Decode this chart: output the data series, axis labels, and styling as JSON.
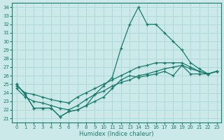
{
  "xlabel": "Humidex (Indice chaleur)",
  "xlim": [
    -0.5,
    23.5
  ],
  "ylim": [
    20.5,
    34.5
  ],
  "yticks": [
    21,
    22,
    23,
    24,
    25,
    26,
    27,
    28,
    29,
    30,
    31,
    32,
    33,
    34
  ],
  "xticks": [
    0,
    1,
    2,
    3,
    4,
    5,
    6,
    7,
    8,
    9,
    10,
    11,
    12,
    13,
    14,
    15,
    16,
    17,
    18,
    19,
    20,
    21,
    22,
    23
  ],
  "bg_color": "#cce9e9",
  "grid_color": "#b0d8d8",
  "line_color": "#1a7a6e",
  "series_main": [
    25.0,
    23.8,
    22.2,
    22.2,
    22.2,
    21.2,
    21.8,
    22.0,
    22.5,
    23.8,
    24.8,
    25.8,
    29.2,
    32.0,
    34.0,
    32.0,
    32.0,
    31.0,
    30.0,
    29.0,
    27.5,
    26.8,
    26.2,
    26.5
  ],
  "series_low": [
    25.0,
    23.8,
    22.2,
    22.2,
    22.2,
    21.2,
    21.8,
    22.0,
    22.5,
    23.0,
    23.5,
    24.5,
    25.5,
    26.0,
    25.8,
    26.0,
    26.2,
    26.5,
    26.0,
    27.2,
    26.2,
    26.2,
    26.2,
    26.5
  ],
  "series_trend1": [
    24.8,
    24.0,
    23.8,
    23.5,
    23.2,
    23.0,
    22.8,
    23.5,
    24.0,
    24.5,
    25.0,
    25.5,
    26.0,
    26.5,
    27.0,
    27.2,
    27.5,
    27.5,
    27.5,
    27.5,
    27.0,
    26.5,
    26.2,
    26.5
  ],
  "series_trend2": [
    24.5,
    23.5,
    23.0,
    22.8,
    22.5,
    22.2,
    22.0,
    22.5,
    23.2,
    23.8,
    24.2,
    24.8,
    25.2,
    25.5,
    26.0,
    26.2,
    26.5,
    26.8,
    27.0,
    27.2,
    26.8,
    26.5,
    26.2,
    26.5
  ]
}
